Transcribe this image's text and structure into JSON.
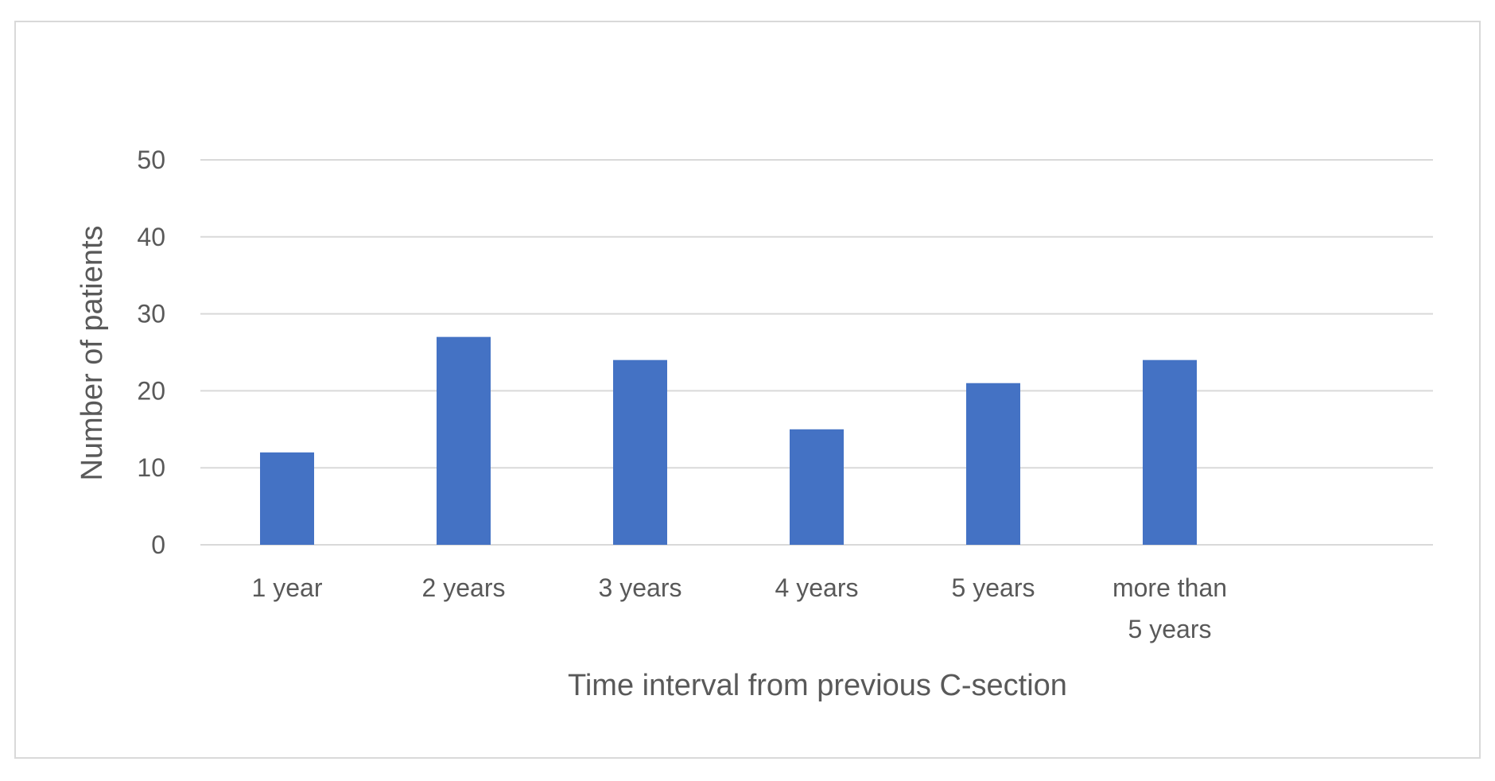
{
  "chart_data": {
    "type": "bar",
    "title": "",
    "xlabel": "Time interval from previous C-section",
    "ylabel": "Number of patients",
    "categories": [
      "1 year",
      "2 years",
      "3 years",
      "4 years",
      "5 years",
      "more than 5 years"
    ],
    "category_lines": [
      [
        "1 year"
      ],
      [
        "2 years"
      ],
      [
        "3 years"
      ],
      [
        "4 years"
      ],
      [
        "5 years"
      ],
      [
        "more than",
        "5 years"
      ]
    ],
    "values": [
      12,
      27,
      24,
      15,
      21,
      24
    ],
    "ylim": [
      0,
      50
    ],
    "yticks": [
      0,
      10,
      20,
      30,
      40,
      50
    ],
    "grid": true,
    "legend": "none",
    "colors": {
      "bar": "#4472c4",
      "grid": "#d9d9d9",
      "text": "#595959",
      "frame": "#d9d9d9"
    }
  }
}
